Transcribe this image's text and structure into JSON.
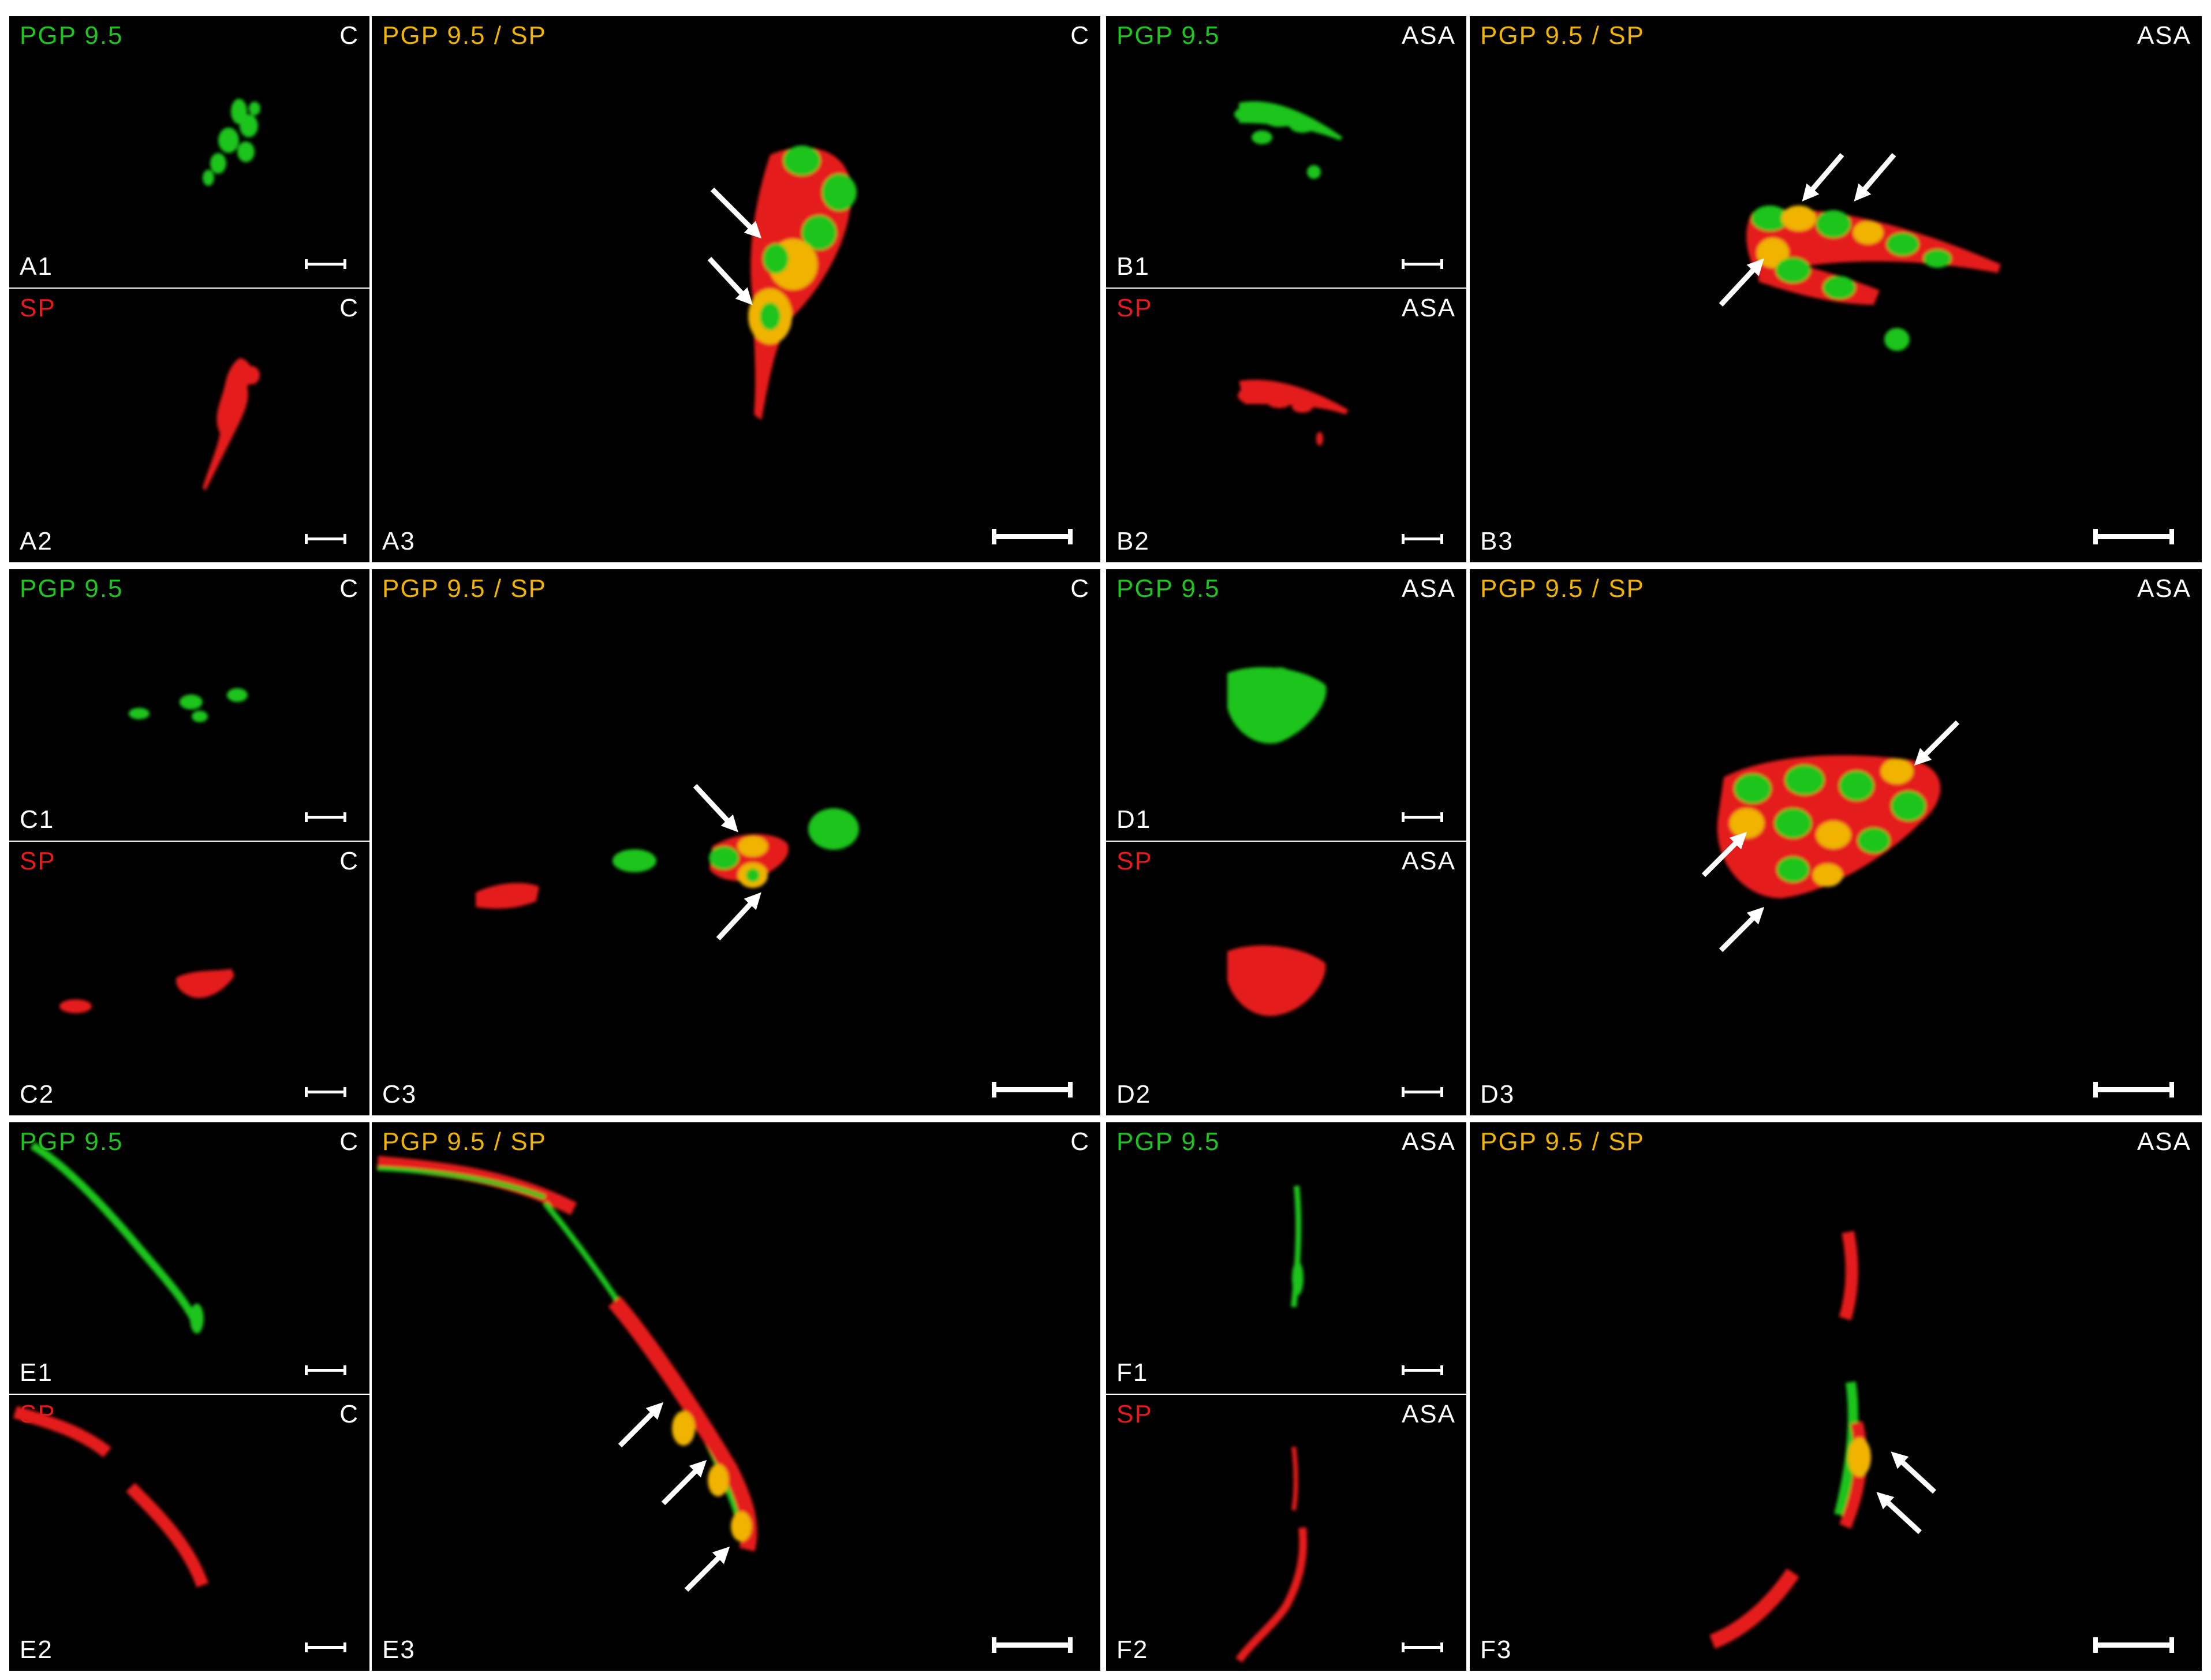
{
  "colors": {
    "green": "#1fc41f",
    "red": "#e51b1b",
    "yellow": "#f0b400",
    "white": "#ffffff"
  },
  "icons": {
    "arrow": "arrow-icon",
    "scale": "scale-bar"
  },
  "panels": {
    "A1": {
      "stain": "PGP 9.5",
      "cond": "C",
      "id": "A1"
    },
    "A2": {
      "stain": "SP",
      "cond": "C",
      "id": "A2"
    },
    "A3": {
      "stain": "PGP 9.5 / SP",
      "cond": "C",
      "id": "A3"
    },
    "B1": {
      "stain": "PGP 9.5",
      "cond": "ASA",
      "id": "B1"
    },
    "B2": {
      "stain": "SP",
      "cond": "ASA",
      "id": "B2"
    },
    "B3": {
      "stain": "PGP 9.5 / SP",
      "cond": "ASA",
      "id": "B3"
    },
    "C1": {
      "stain": "PGP 9.5",
      "cond": "C",
      "id": "C1"
    },
    "C2": {
      "stain": "SP",
      "cond": "C",
      "id": "C2"
    },
    "C3": {
      "stain": "PGP 9.5 / SP",
      "cond": "C",
      "id": "C3"
    },
    "D1": {
      "stain": "PGP 9.5",
      "cond": "ASA",
      "id": "D1"
    },
    "D2": {
      "stain": "SP",
      "cond": "ASA",
      "id": "D2"
    },
    "D3": {
      "stain": "PGP 9.5 / SP",
      "cond": "ASA",
      "id": "D3"
    },
    "E1": {
      "stain": "PGP 9.5",
      "cond": "C",
      "id": "E1"
    },
    "E2": {
      "stain": "SP",
      "cond": "C",
      "id": "E2"
    },
    "E3": {
      "stain": "PGP 9.5 / SP",
      "cond": "C",
      "id": "E3"
    },
    "F1": {
      "stain": "PGP 9.5",
      "cond": "ASA",
      "id": "F1"
    },
    "F2": {
      "stain": "SP",
      "cond": "ASA",
      "id": "F2"
    },
    "F3": {
      "stain": "PGP 9.5 / SP",
      "cond": "ASA",
      "id": "F3"
    }
  }
}
